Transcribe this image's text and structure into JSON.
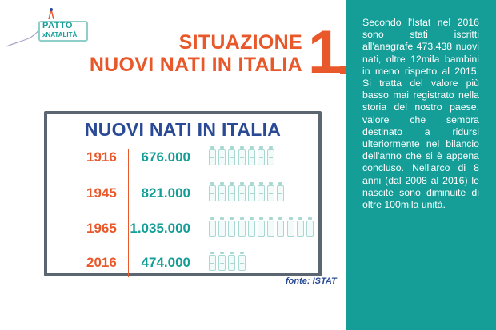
{
  "logo": {
    "line1": "PATTO",
    "line2": "xNATALITÀ"
  },
  "title": {
    "line1": "SITUAZIONE",
    "line2": "NUOVI NATI IN ITALIA",
    "number": "1"
  },
  "table": {
    "title": "NUOVI NATI IN ITALIA",
    "rows": [
      {
        "year": "1916",
        "count": "676.000",
        "bottles": 7
      },
      {
        "year": "1945",
        "count": "821.000",
        "bottles": 8
      },
      {
        "year": "1965",
        "count": "1.035.000",
        "bottles": 11
      },
      {
        "year": "2016",
        "count": "474.000",
        "bottles": 4
      }
    ],
    "source": "fonte: ISTAT"
  },
  "body": {
    "text": "Secondo l'Istat nel 2016 sono stati iscritti all'anagrafe 473.438 nuovi nati, oltre 12mila bambini in meno rispetto al 2015. Si tratta del valore più basso mai registrato nella storia del nostro paese, valore che sembra destinato a ridursi ulteriormente nel bilancio dell'anno che si è appena concluso. Nell'arco di 8 anni (dal 2008 al 2016) le nascite sono diminuite di oltre 100mila unità."
  },
  "colors": {
    "accent": "#e8582a",
    "teal": "#149e97",
    "navy": "#2b4a96"
  }
}
